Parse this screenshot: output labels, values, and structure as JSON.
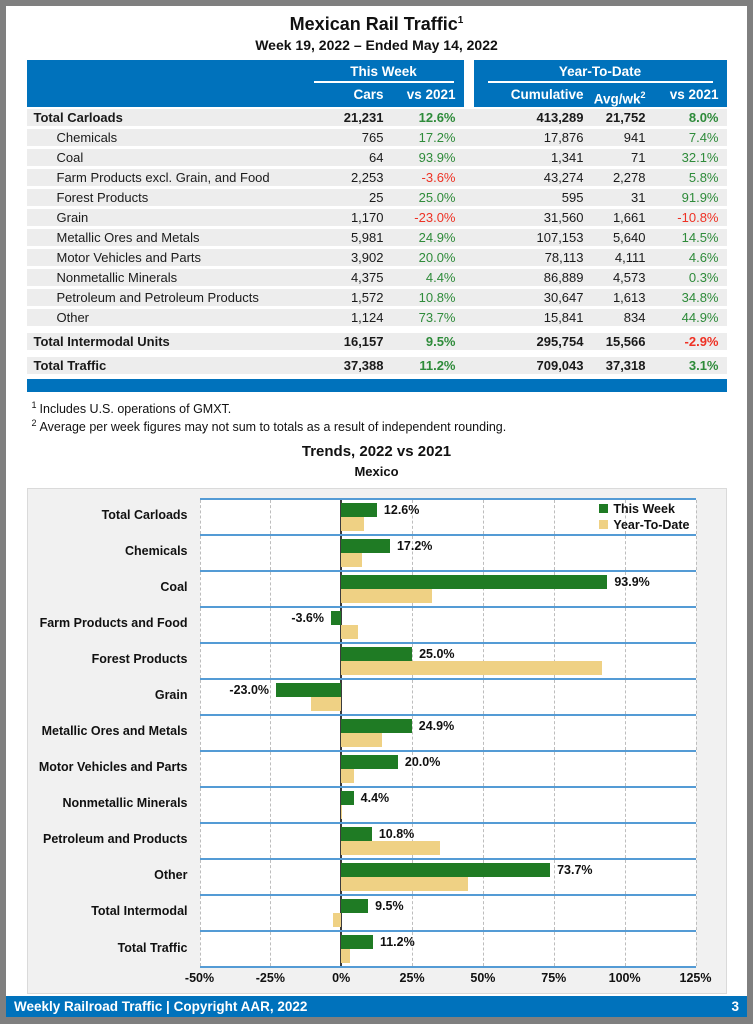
{
  "page": {
    "title": "Mexican Rail Traffic",
    "title_superscript": "1",
    "subtitle": "Week 19, 2022 – Ended May 14, 2022"
  },
  "table": {
    "group_headers": {
      "this_week": "This Week",
      "year_to_date": "Year-To-Date"
    },
    "columns": {
      "cars": "Cars",
      "tw_vs2021": "vs 2021",
      "cumulative": "Cumulative",
      "avg_wk": "Avg/wk",
      "avg_wk_superscript": "2",
      "ytd_vs2021": "vs 2021"
    },
    "rows": [
      {
        "label": "Total Carloads",
        "is_total": true,
        "indent": false,
        "cars": "21,231",
        "tw_pct": "12.6%",
        "cumulative": "413,289",
        "avg_wk": "21,752",
        "ytd_pct": "8.0%"
      },
      {
        "label": "Chemicals",
        "is_total": false,
        "indent": true,
        "cars": "765",
        "tw_pct": "17.2%",
        "cumulative": "17,876",
        "avg_wk": "941",
        "ytd_pct": "7.4%"
      },
      {
        "label": "Coal",
        "is_total": false,
        "indent": true,
        "cars": "64",
        "tw_pct": "93.9%",
        "cumulative": "1,341",
        "avg_wk": "71",
        "ytd_pct": "32.1%"
      },
      {
        "label": "Farm Products excl. Grain, and Food",
        "is_total": false,
        "indent": true,
        "cars": "2,253",
        "tw_pct": "-3.6%",
        "cumulative": "43,274",
        "avg_wk": "2,278",
        "ytd_pct": "5.8%"
      },
      {
        "label": "Forest Products",
        "is_total": false,
        "indent": true,
        "cars": "25",
        "tw_pct": "25.0%",
        "cumulative": "595",
        "avg_wk": "31",
        "ytd_pct": "91.9%"
      },
      {
        "label": "Grain",
        "is_total": false,
        "indent": true,
        "cars": "1,170",
        "tw_pct": "-23.0%",
        "cumulative": "31,560",
        "avg_wk": "1,661",
        "ytd_pct": "-10.8%"
      },
      {
        "label": "Metallic Ores and Metals",
        "is_total": false,
        "indent": true,
        "cars": "5,981",
        "tw_pct": "24.9%",
        "cumulative": "107,153",
        "avg_wk": "5,640",
        "ytd_pct": "14.5%"
      },
      {
        "label": "Motor Vehicles and Parts",
        "is_total": false,
        "indent": true,
        "cars": "3,902",
        "tw_pct": "20.0%",
        "cumulative": "78,113",
        "avg_wk": "4,111",
        "ytd_pct": "4.6%"
      },
      {
        "label": "Nonmetallic Minerals",
        "is_total": false,
        "indent": true,
        "cars": "4,375",
        "tw_pct": "4.4%",
        "cumulative": "86,889",
        "avg_wk": "4,573",
        "ytd_pct": "0.3%"
      },
      {
        "label": "Petroleum and Petroleum Products",
        "is_total": false,
        "indent": true,
        "cars": "1,572",
        "tw_pct": "10.8%",
        "cumulative": "30,647",
        "avg_wk": "1,613",
        "ytd_pct": "34.8%"
      },
      {
        "label": "Other",
        "is_total": false,
        "indent": true,
        "cars": "1,124",
        "tw_pct": "73.7%",
        "cumulative": "15,841",
        "avg_wk": "834",
        "ytd_pct": "44.9%"
      },
      {
        "label": "Total Intermodal Units",
        "is_total": true,
        "indent": false,
        "cars": "16,157",
        "tw_pct": "9.5%",
        "cumulative": "295,754",
        "avg_wk": "15,566",
        "ytd_pct": "-2.9%"
      },
      {
        "label": "Total Traffic",
        "is_total": true,
        "indent": false,
        "cars": "37,388",
        "tw_pct": "11.2%",
        "cumulative": "709,043",
        "avg_wk": "37,318",
        "ytd_pct": "3.1%"
      }
    ]
  },
  "footnotes": [
    {
      "marker": "1",
      "text": "Includes U.S. operations of GMXT."
    },
    {
      "marker": "2",
      "text": "Average per week figures may not sum to totals as a result of independent rounding."
    }
  ],
  "chart_data": {
    "type": "bar",
    "orientation": "horizontal",
    "title": "Trends, 2022 vs 2021",
    "subtitle": "Mexico",
    "categories": [
      "Total Carloads",
      "Chemicals",
      "Coal",
      "Farm Products and Food",
      "Forest Products",
      "Grain",
      "Metallic Ores and Metals",
      "Motor Vehicles and Parts",
      "Nonmetallic Minerals",
      "Petroleum and Products",
      "Other",
      "Total Intermodal",
      "Total Traffic"
    ],
    "series": [
      {
        "name": "This Week",
        "color": "#1f7b24",
        "values": [
          12.6,
          17.2,
          93.9,
          -3.6,
          25.0,
          -23.0,
          24.9,
          20.0,
          4.4,
          10.8,
          73.7,
          9.5,
          11.2
        ]
      },
      {
        "name": "Year-To-Date",
        "color": "#efd184",
        "values": [
          8.0,
          7.4,
          32.1,
          5.8,
          91.9,
          -10.8,
          14.5,
          4.6,
          0.3,
          34.8,
          44.9,
          -2.9,
          3.1
        ]
      }
    ],
    "bar_labels": [
      "12.6%",
      "17.2%",
      "93.9%",
      "-3.6%",
      "25.0%",
      "-23.0%",
      "24.9%",
      "20.0%",
      "4.4%",
      "10.8%",
      "73.7%",
      "9.5%",
      "11.2%"
    ],
    "xlim": [
      -50,
      125
    ],
    "tick_labels": [
      "-50%",
      "-25%",
      "0%",
      "25%",
      "50%",
      "75%",
      "100%",
      "125%"
    ],
    "grid": "dashed-vertical",
    "legend_position": "top-right"
  },
  "footer": {
    "left": "Weekly Railroad Traffic | Copyright AAR, 2022",
    "page_number": "3"
  },
  "colors": {
    "accent_blue": "#0072bc",
    "band_line_blue": "#549bd5",
    "positive_green": "#2e8b3a",
    "negative_red": "#ee3124",
    "bar_green": "#1f7b24",
    "bar_tan": "#efd184",
    "row_gray": "#ededed",
    "panel_gray": "#f1f1f1",
    "frame_gray": "#7f7f7f"
  }
}
